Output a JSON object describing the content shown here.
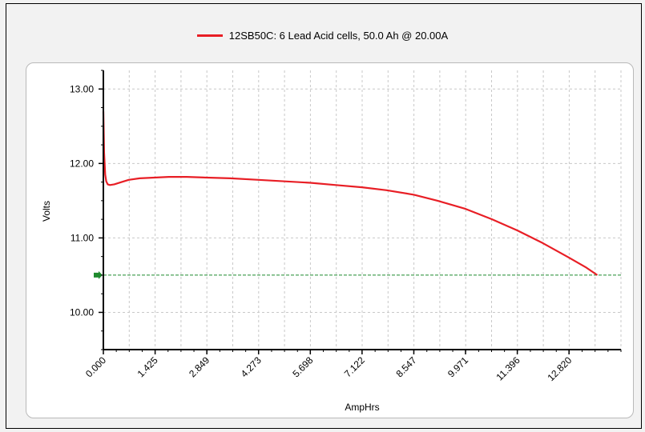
{
  "legend": {
    "label": "12SB50C: 6 Lead Acid cells, 50.0 Ah @ 20.00A"
  },
  "colors": {
    "series": "#e81e25",
    "cutoff": "#1f8a2e",
    "grid": "#c8c8c8"
  },
  "chart_data": {
    "type": "line",
    "xlabel": "AmpHrs",
    "ylabel": "Volts",
    "xlim": [
      0,
      14.25
    ],
    "ylim": [
      9.5,
      13.25
    ],
    "xticks": [
      "0.000",
      "1.425",
      "2.849",
      "4.273",
      "5.698",
      "7.122",
      "8.547",
      "9.971",
      "11.396",
      "12.820"
    ],
    "yticks": [
      "10.00",
      "11.00",
      "12.00",
      "13.00"
    ],
    "grid": true,
    "legend_position": "top",
    "cutoff_voltage": 10.5,
    "series": [
      {
        "name": "12SB50C: 6 Lead Acid cells, 50.0 Ah @ 20.00A",
        "x": [
          0,
          0.02,
          0.05,
          0.08,
          0.12,
          0.18,
          0.3,
          0.5,
          0.7,
          1.0,
          1.4,
          1.8,
          2.3,
          2.85,
          3.5,
          4.27,
          5.0,
          5.7,
          6.4,
          7.12,
          7.8,
          8.55,
          9.2,
          9.97,
          10.7,
          11.4,
          12.1,
          12.8,
          13.3,
          13.6
        ],
        "values": [
          12.7,
          12.15,
          11.85,
          11.76,
          11.72,
          11.71,
          11.72,
          11.75,
          11.78,
          11.8,
          11.81,
          11.82,
          11.82,
          11.81,
          11.8,
          11.78,
          11.76,
          11.74,
          11.71,
          11.68,
          11.64,
          11.58,
          11.5,
          11.39,
          11.25,
          11.1,
          10.93,
          10.74,
          10.6,
          10.5
        ]
      }
    ]
  }
}
